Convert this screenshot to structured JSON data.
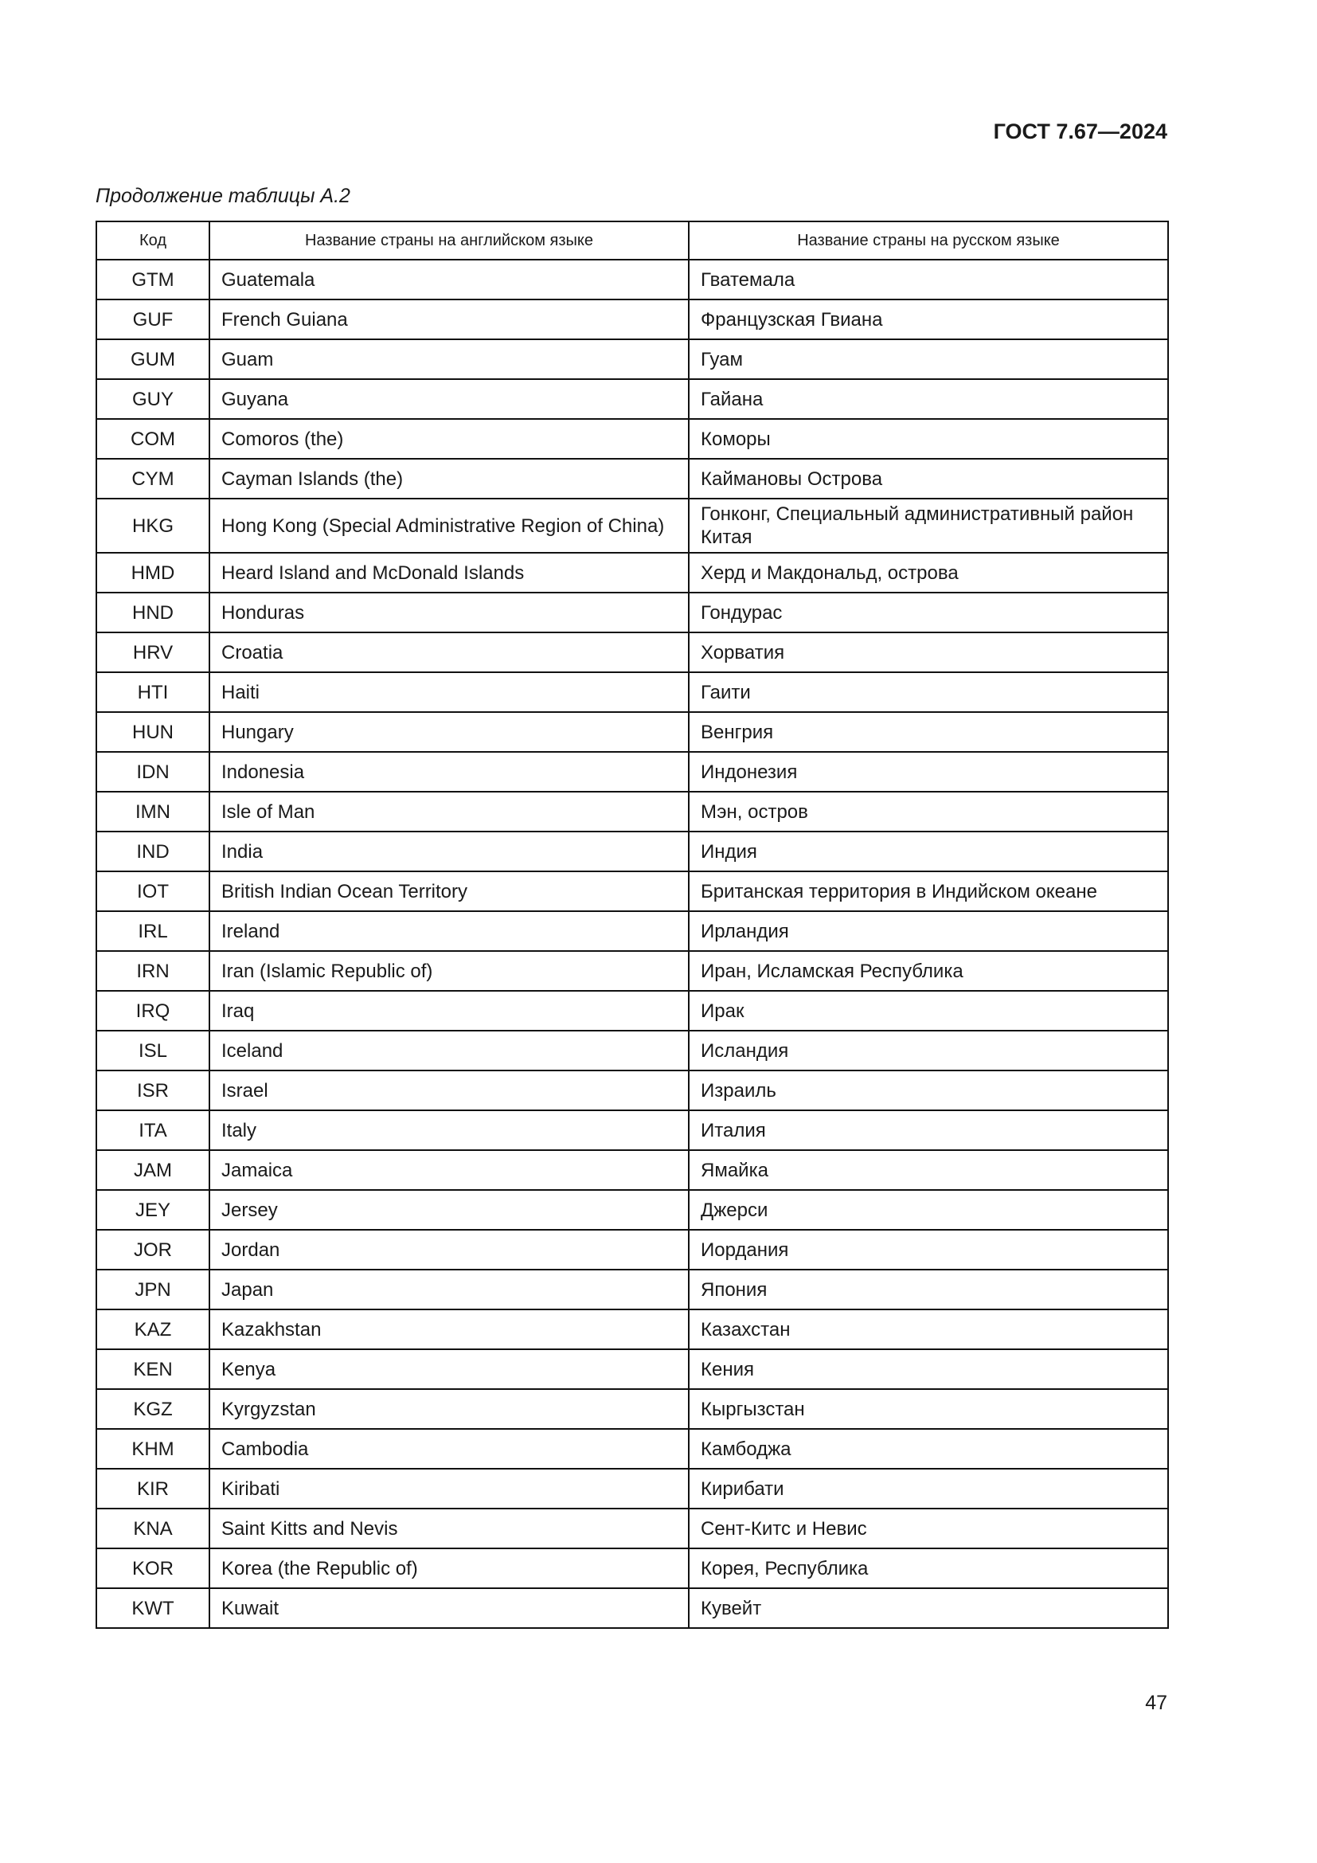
{
  "header": {
    "title": "ГОСТ 7.67—2024"
  },
  "caption": "Продолжение таблицы А.2",
  "table": {
    "columns": [
      "Код",
      "Название страны на английском языке",
      "Название страны на русском языке"
    ],
    "rows": [
      [
        "GTM",
        "Guatemala",
        "Гватемала"
      ],
      [
        "GUF",
        "French Guiana",
        "Французская Гвиана"
      ],
      [
        "GUM",
        "Guam",
        "Гуам"
      ],
      [
        "GUY",
        "Guyana",
        "Гайана"
      ],
      [
        "COM",
        "Comoros (the)",
        "Коморы"
      ],
      [
        "CYM",
        "Cayman Islands (the)",
        "Каймановы Острова"
      ],
      [
        "HKG",
        "Hong Kong (Special Administrative Region of China)",
        "Гонконг, Специальный административный район Китая"
      ],
      [
        "HMD",
        "Heard Island and McDonald Islands",
        "Херд и Макдональд, острова"
      ],
      [
        "HND",
        "Honduras",
        "Гондурас"
      ],
      [
        "HRV",
        "Croatia",
        "Хорватия"
      ],
      [
        "HTI",
        "Haiti",
        "Гаити"
      ],
      [
        "HUN",
        "Hungary",
        "Венгрия"
      ],
      [
        "IDN",
        "Indonesia",
        "Индонезия"
      ],
      [
        "IMN",
        "Isle of Man",
        "Мэн, остров"
      ],
      [
        "IND",
        "India",
        "Индия"
      ],
      [
        "IOT",
        "British Indian Ocean Territory",
        "Британская территория в Индийском океане"
      ],
      [
        "IRL",
        "Ireland",
        "Ирландия"
      ],
      [
        "IRN",
        "Iran (Islamic Republic of)",
        "Иран, Исламская Республика"
      ],
      [
        "IRQ",
        "Iraq",
        "Ирак"
      ],
      [
        "ISL",
        "Iceland",
        "Исландия"
      ],
      [
        "ISR",
        "Israel",
        "Израиль"
      ],
      [
        "ITA",
        "Italy",
        "Италия"
      ],
      [
        "JAM",
        "Jamaica",
        "Ямайка"
      ],
      [
        "JEY",
        "Jersey",
        "Джерси"
      ],
      [
        "JOR",
        "Jordan",
        "Иордания"
      ],
      [
        "JPN",
        "Japan",
        "Япония"
      ],
      [
        "KAZ",
        "Kazakhstan",
        "Казахстан"
      ],
      [
        "KEN",
        "Kenya",
        "Кения"
      ],
      [
        "KGZ",
        "Kyrgyzstan",
        "Кыргызстан"
      ],
      [
        "KHM",
        "Cambodia",
        "Камбоджа"
      ],
      [
        "KIR",
        "Kiribati",
        "Кирибати"
      ],
      [
        "KNA",
        "Saint Kitts and Nevis",
        "Сент-Китс и Невис"
      ],
      [
        "KOR",
        "Korea (the Republic of)",
        "Корея, Республика"
      ],
      [
        "KWT",
        "Kuwait",
        "Кувейт"
      ]
    ]
  },
  "page_number": "47"
}
